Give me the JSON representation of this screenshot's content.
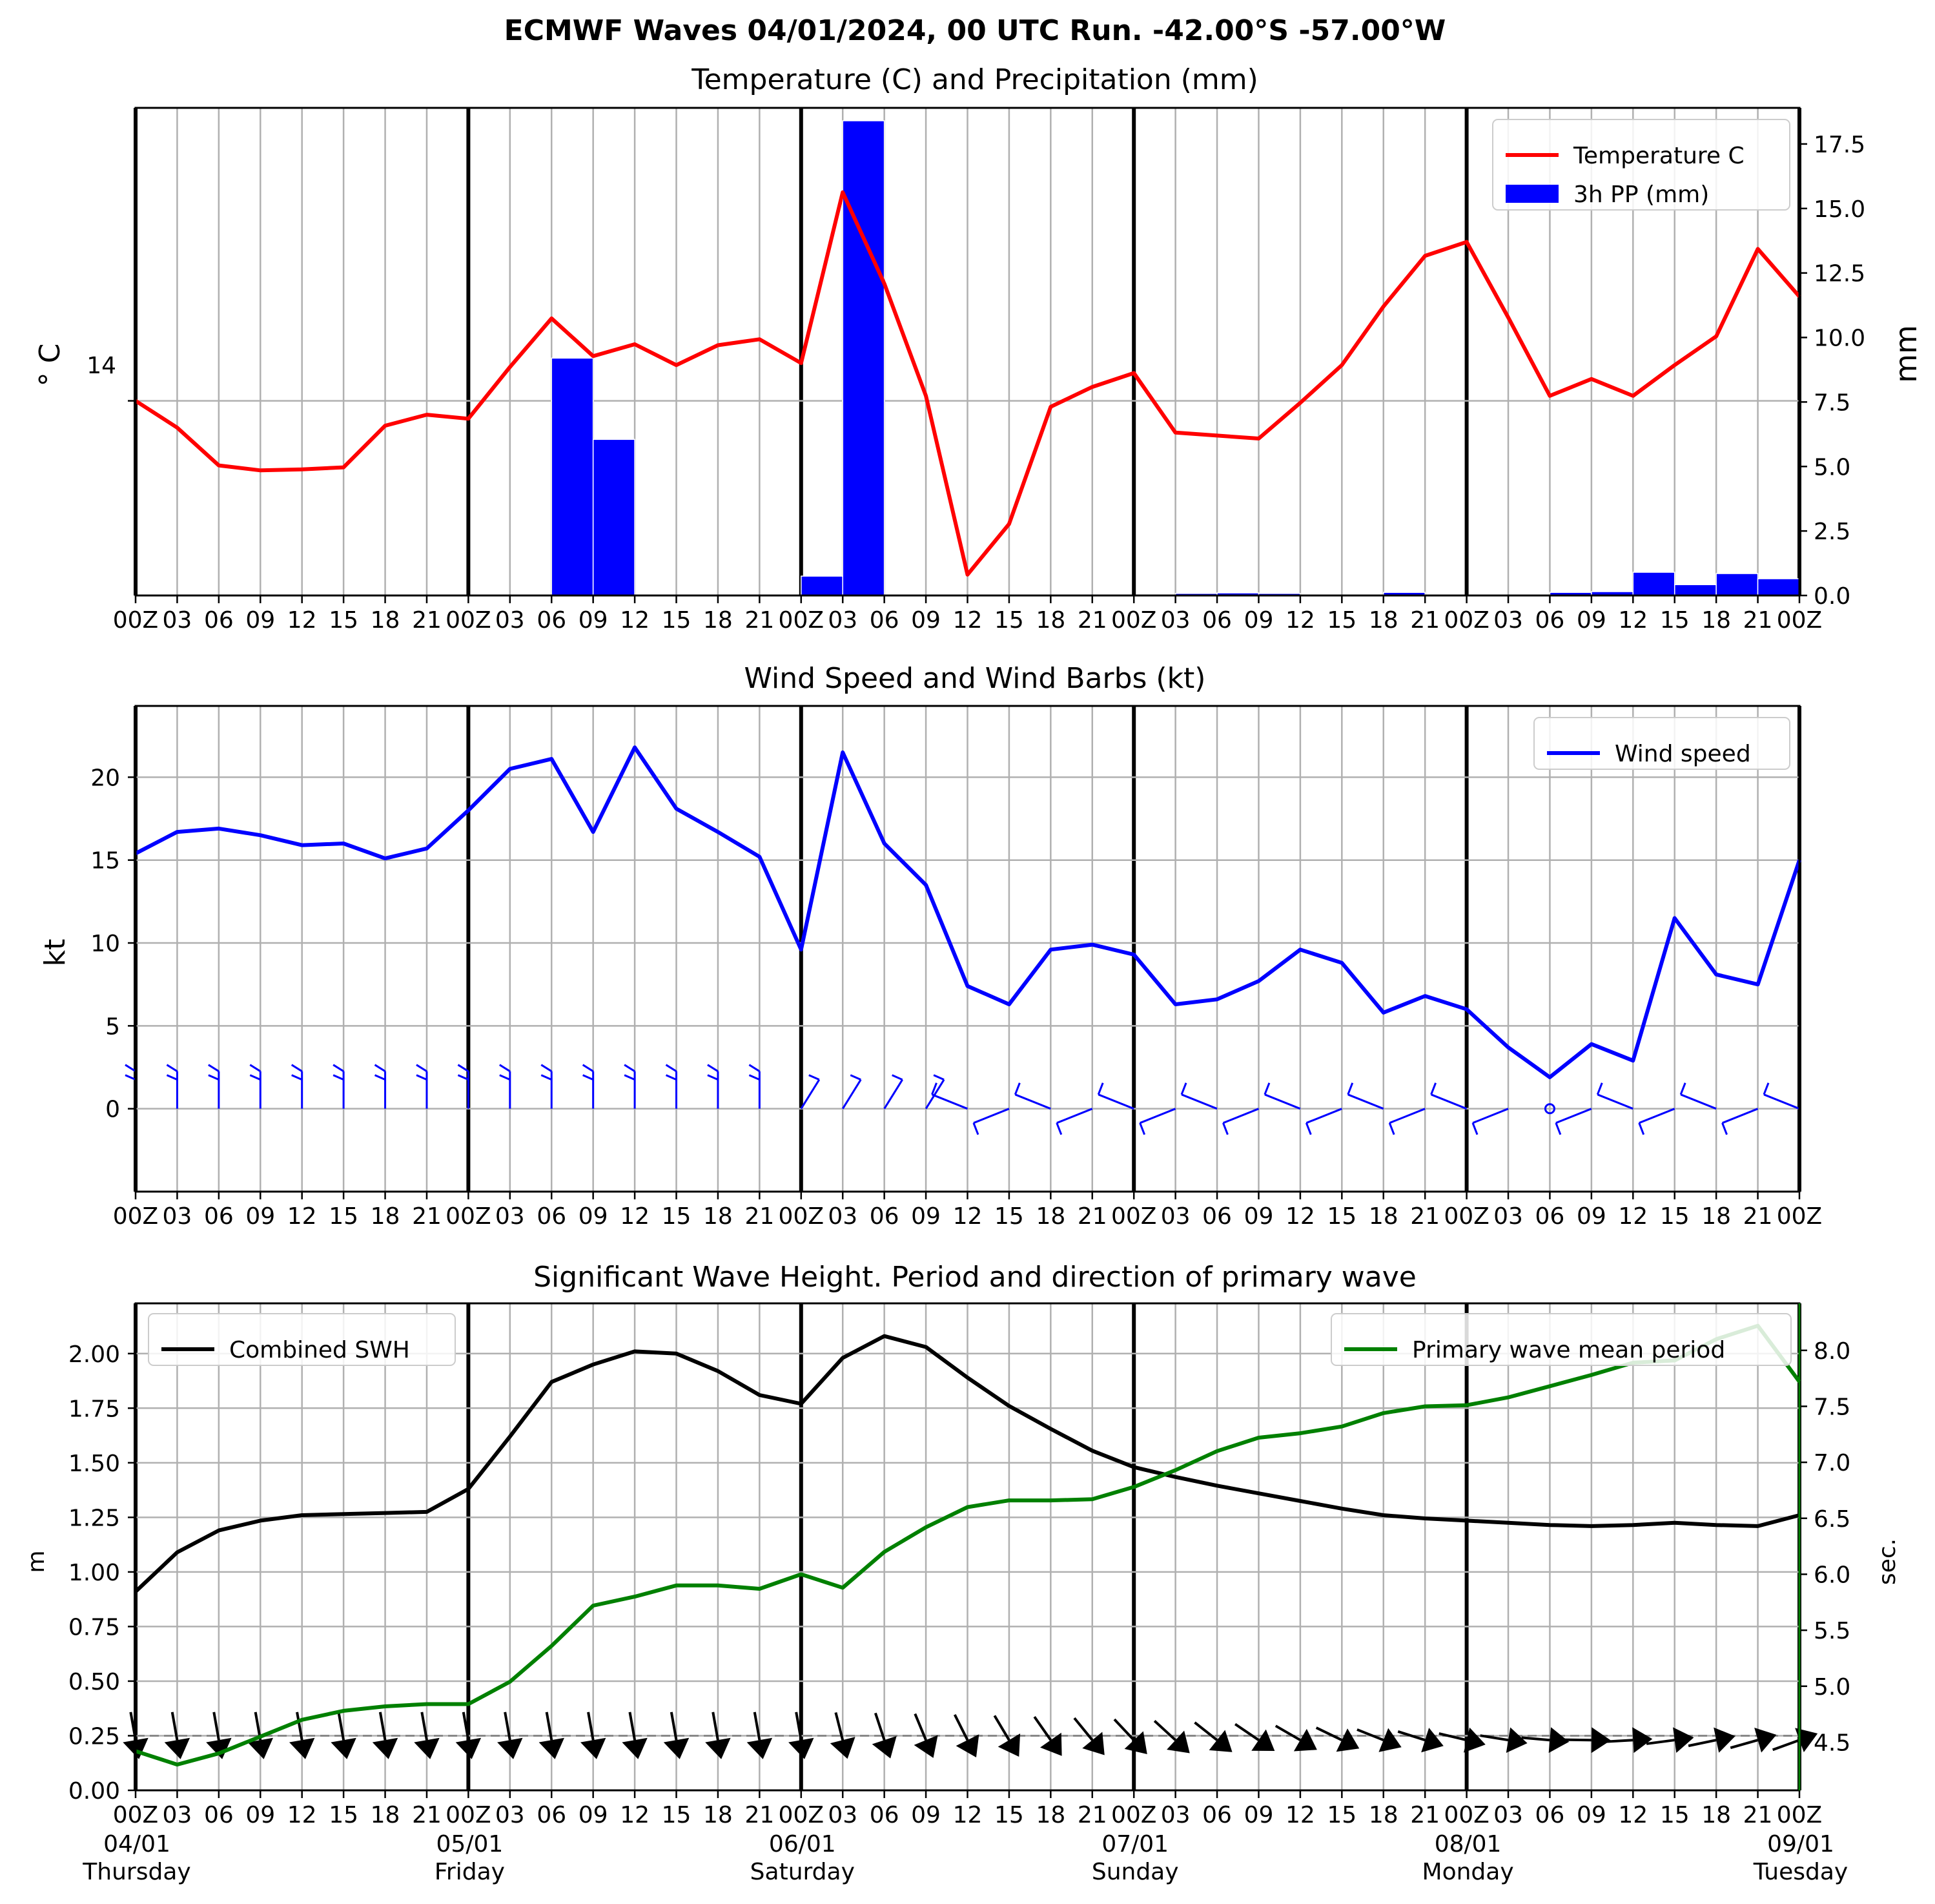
{
  "suptitle": "ECMWF Waves 04/01/2024, 00 UTC Run. -42.00°S -57.00°W",
  "x_tick_labels": [
    "00Z",
    "03",
    "06",
    "09",
    "12",
    "15",
    "18",
    "21",
    "00Z",
    "03",
    "06",
    "09",
    "12",
    "15",
    "18",
    "21",
    "00Z",
    "03",
    "06",
    "09",
    "12",
    "15",
    "18",
    "21",
    "00Z",
    "03",
    "06",
    "09",
    "12",
    "15",
    "18",
    "21",
    "00Z",
    "03",
    "06",
    "09",
    "12",
    "15",
    "18",
    "21",
    "00Z"
  ],
  "date_labels": [
    {
      "date": "04/01",
      "day": "Thursday"
    },
    {
      "date": "05/01",
      "day": "Friday"
    },
    {
      "date": "06/01",
      "day": "Saturday"
    },
    {
      "date": "07/01",
      "day": "Sunday"
    },
    {
      "date": "08/01",
      "day": "Monday"
    },
    {
      "date": "09/01",
      "day": "Tuesday"
    }
  ],
  "colors": {
    "temperature": "#ff0000",
    "precip": "#0000ff",
    "wind": "#0000ff",
    "swh": "#000000",
    "period": "#008000",
    "grid": "#b0b0b0",
    "day_line": "#000000"
  },
  "chart_data": [
    {
      "type": "line",
      "title": "Temperature (C) and Precipitation (mm)",
      "ylabel": "° C",
      "y2label": "mm",
      "x_hours": [
        0,
        3,
        6,
        9,
        12,
        15,
        18,
        21,
        24,
        27,
        30,
        33,
        36,
        39,
        42,
        45,
        48,
        51,
        54,
        57,
        60,
        63,
        66,
        69,
        72,
        75,
        78,
        81,
        84,
        87,
        90,
        93,
        96,
        99,
        102,
        105,
        108,
        111,
        114,
        117,
        120
      ],
      "xlim": [
        0,
        120
      ],
      "y_ticks": [
        "14"
      ],
      "y2_ticks": [
        "0.0",
        "2.5",
        "5.0",
        "7.5",
        "10.0",
        "12.5",
        "15.0",
        "17.5"
      ],
      "y2lim": [
        0,
        18.9
      ],
      "grid": true,
      "legend_position": "upper right",
      "series": [
        {
          "name": "Temperature C",
          "type": "line",
          "values": [
            14.0,
            13.73,
            13.35,
            13.3,
            13.31,
            13.33,
            13.75,
            13.86,
            13.82,
            14.34,
            14.83,
            14.45,
            14.57,
            14.36,
            14.56,
            14.62,
            14.38,
            16.1,
            15.18,
            14.05,
            12.25,
            12.76,
            13.94,
            14.14,
            14.28,
            13.68,
            13.65,
            13.62,
            13.98,
            14.36,
            14.95,
            15.46,
            15.6,
            14.84,
            14.05,
            14.22,
            14.05,
            14.36,
            14.65,
            15.53,
            15.05
          ]
        },
        {
          "name": "3h PP (mm)",
          "type": "bar",
          "values": [
            0,
            0,
            0,
            0,
            0,
            0,
            0,
            0,
            0,
            0,
            9.2,
            6.05,
            0,
            0,
            0,
            0,
            0.75,
            18.4,
            0,
            0,
            0,
            0,
            0,
            0,
            0,
            0.08,
            0.1,
            0.08,
            0,
            0,
            0.12,
            0,
            0,
            0,
            0.12,
            0.15,
            0.9,
            0.42,
            0.85,
            0.65
          ]
        }
      ]
    },
    {
      "type": "line",
      "title": "Wind Speed and Wind Barbs (kt)",
      "ylabel": "kt",
      "x_hours": [
        0,
        3,
        6,
        9,
        12,
        15,
        18,
        21,
        24,
        27,
        30,
        33,
        36,
        39,
        42,
        45,
        48,
        51,
        54,
        57,
        60,
        63,
        66,
        69,
        72,
        75,
        78,
        81,
        84,
        87,
        90,
        93,
        96,
        99,
        102,
        105,
        108,
        111,
        114,
        117,
        120
      ],
      "xlim": [
        0,
        120
      ],
      "ylim": [
        -5,
        24.3
      ],
      "y_ticks": [
        "0",
        "5",
        "10",
        "15",
        "20"
      ],
      "grid": true,
      "legend_position": "upper right",
      "series": [
        {
          "name": "Wind speed",
          "values": [
            15.4,
            16.7,
            16.9,
            16.5,
            15.9,
            16.0,
            15.1,
            15.7,
            18.0,
            20.5,
            21.1,
            16.7,
            21.8,
            18.1,
            16.7,
            15.2,
            9.6,
            21.5,
            16.0,
            13.5,
            7.4,
            6.3,
            9.6,
            9.9,
            9.3,
            6.3,
            6.6,
            7.7,
            9.6,
            8.8,
            5.8,
            6.8,
            6.0,
            3.7,
            1.9,
            3.9,
            2.9,
            11.5,
            8.1,
            7.5,
            15.0
          ]
        }
      ]
    },
    {
      "type": "line",
      "title": "Significant Wave Height. Period and direction of primary wave",
      "ylabel": "m",
      "y2label": "sec.",
      "x_hours": [
        0,
        3,
        6,
        9,
        12,
        15,
        18,
        21,
        24,
        27,
        30,
        33,
        36,
        39,
        42,
        45,
        48,
        51,
        54,
        57,
        60,
        63,
        66,
        69,
        72,
        75,
        78,
        81,
        84,
        87,
        90,
        93,
        96,
        99,
        102,
        105,
        108,
        111,
        114,
        117,
        120
      ],
      "xlim": [
        0,
        120
      ],
      "ylim": [
        0,
        2.23
      ],
      "y_ticks": [
        "0.00",
        "0.25",
        "0.50",
        "0.75",
        "1.00",
        "1.25",
        "1.50",
        "1.75",
        "2.00"
      ],
      "y2lim": [
        4.07,
        8.42
      ],
      "y2_ticks": [
        "4.5",
        "5.0",
        "5.5",
        "6.0",
        "6.5",
        "7.0",
        "7.5",
        "8.0"
      ],
      "grid": true,
      "series": [
        {
          "name": "Combined SWH",
          "legend_position": "upper left",
          "values": [
            0.91,
            1.09,
            1.19,
            1.235,
            1.26,
            1.265,
            1.27,
            1.275,
            1.38,
            1.62,
            1.87,
            1.95,
            2.01,
            2.0,
            1.92,
            1.81,
            1.77,
            1.98,
            2.08,
            2.03,
            1.89,
            1.76,
            1.655,
            1.555,
            1.48,
            1.435,
            1.395,
            1.36,
            1.325,
            1.29,
            1.26,
            1.245,
            1.235,
            1.225,
            1.215,
            1.21,
            1.215,
            1.225,
            1.215,
            1.21,
            1.26
          ]
        },
        {
          "name": "Primary wave mean period",
          "legend_position": "upper right",
          "values": [
            4.42,
            4.3,
            4.4,
            4.55,
            4.7,
            4.78,
            4.82,
            4.84,
            4.84,
            5.04,
            5.36,
            5.72,
            5.8,
            5.9,
            5.9,
            5.87,
            6.0,
            5.88,
            6.2,
            6.42,
            6.6,
            6.66,
            6.66,
            6.67,
            6.78,
            6.93,
            7.1,
            7.22,
            7.26,
            7.32,
            7.44,
            7.5,
            7.51,
            7.58,
            7.68,
            7.78,
            7.89,
            7.91,
            8.1,
            8.22,
            7.72
          ]
        }
      ]
    }
  ]
}
